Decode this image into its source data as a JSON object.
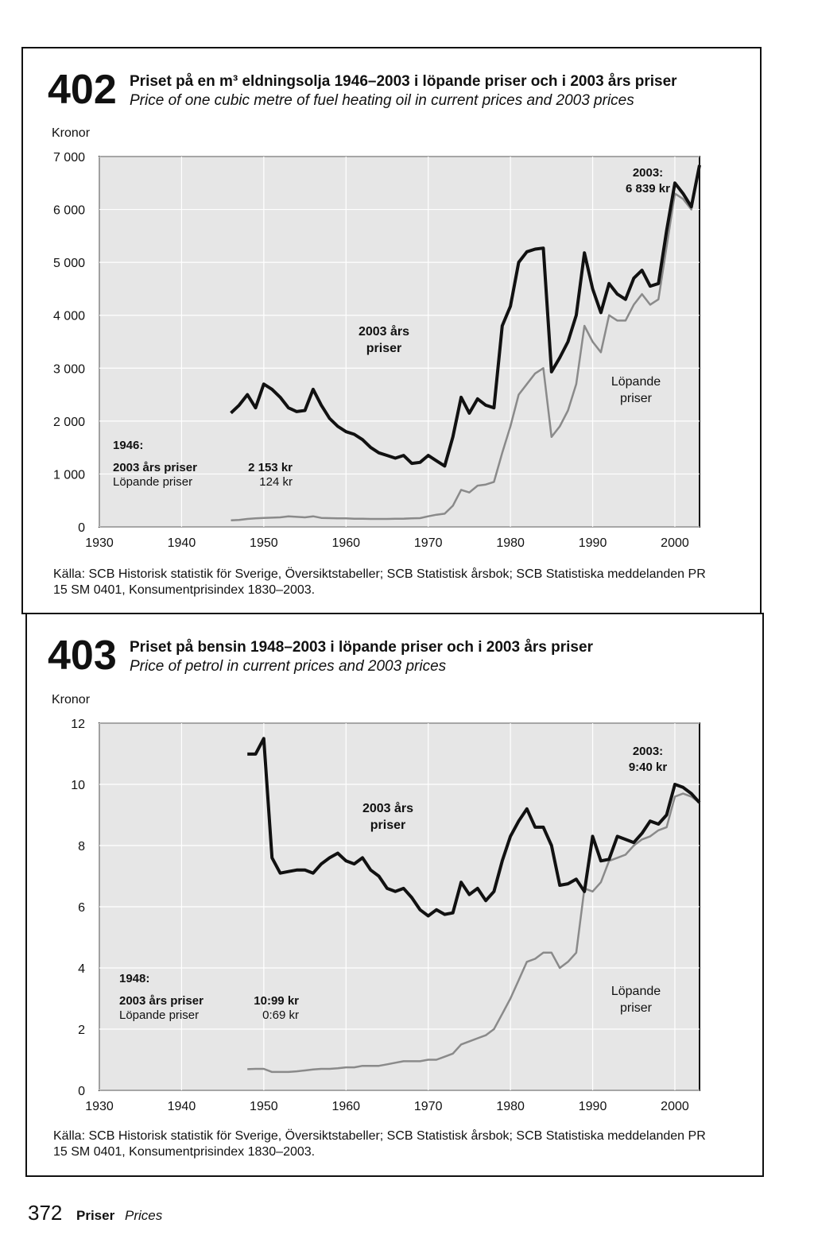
{
  "chart_data": [
    {
      "type": "line",
      "figure_number": "402",
      "title": "Priset på en m³ eldningsolja 1946–2003 i löpande priser och i 2003 års priser",
      "subtitle": "Price of one cubic metre of fuel heating oil in current prices and 2003 prices",
      "y_label": "Kronor",
      "x": [
        1946,
        1947,
        1948,
        1949,
        1950,
        1951,
        1952,
        1953,
        1954,
        1955,
        1956,
        1957,
        1958,
        1959,
        1960,
        1961,
        1962,
        1963,
        1964,
        1965,
        1966,
        1967,
        1968,
        1969,
        1970,
        1971,
        1972,
        1973,
        1974,
        1975,
        1976,
        1977,
        1978,
        1979,
        1980,
        1981,
        1982,
        1983,
        1984,
        1985,
        1986,
        1987,
        1988,
        1989,
        1990,
        1991,
        1992,
        1993,
        1994,
        1995,
        1996,
        1997,
        1998,
        1999,
        2000,
        2001,
        2002,
        2003
      ],
      "series": [
        {
          "name": "2003 års priser",
          "color": "#111111",
          "values": [
            2153,
            2300,
            2500,
            2250,
            2700,
            2600,
            2450,
            2250,
            2180,
            2200,
            2600,
            2300,
            2050,
            1900,
            1800,
            1750,
            1650,
            1500,
            1400,
            1350,
            1300,
            1350,
            1200,
            1220,
            1350,
            1250,
            1150,
            1700,
            2450,
            2150,
            2420,
            2300,
            2250,
            3800,
            4170,
            5000,
            5200,
            5250,
            5270,
            2930,
            3200,
            3500,
            4000,
            5180,
            4500,
            4050,
            4600,
            4400,
            4300,
            4700,
            4850,
            4550,
            4600,
            5600,
            6500,
            6300,
            6050,
            6839
          ]
        },
        {
          "name": "Löpande priser",
          "color": "#8a8a8a",
          "values": [
            124,
            130,
            150,
            160,
            170,
            175,
            180,
            200,
            190,
            180,
            200,
            170,
            165,
            160,
            160,
            155,
            155,
            150,
            150,
            150,
            155,
            155,
            160,
            165,
            200,
            230,
            250,
            400,
            700,
            650,
            780,
            800,
            850,
            1400,
            1900,
            2500,
            2700,
            2900,
            3000,
            1700,
            1900,
            2200,
            2700,
            3800,
            3500,
            3300,
            4000,
            3900,
            3900,
            4200,
            4400,
            4200,
            4300,
            5300,
            6300,
            6200,
            6000,
            6839
          ]
        }
      ],
      "end_label": [
        "2003:",
        "6 839 kr"
      ],
      "start_label": {
        "year": "1946:",
        "rows": [
          [
            "2003 års priser",
            "2 153 kr"
          ],
          [
            "Löpande priser",
            "124 kr"
          ]
        ]
      },
      "xlim": [
        1930,
        2003
      ],
      "xticks": [
        1930,
        1940,
        1950,
        1960,
        1970,
        1980,
        1990,
        2000
      ],
      "ylim": [
        0,
        7000
      ],
      "yticks": [
        0,
        {
          "value": 1000,
          "label": "1 000"
        },
        {
          "value": 2000,
          "label": "2 000"
        },
        {
          "value": 3000,
          "label": "3 000"
        },
        {
          "value": 4000,
          "label": "4 000"
        },
        {
          "value": 5000,
          "label": "5 000"
        },
        {
          "value": 6000,
          "label": "6 000"
        },
        {
          "value": 7000,
          "label": "7 000"
        }
      ],
      "grid": true,
      "source": "Källa: SCB Historisk statistik för Sverige, Översiktstabeller; SCB Statistisk årsbok; SCB Statistiska meddelanden PR 15 SM 0401, Konsumentprisindex 1830–2003."
    },
    {
      "type": "line",
      "figure_number": "403",
      "title": "Priset på bensin 1948–2003 i löpande priser och i 2003 års priser",
      "subtitle": "Price of petrol in current prices and 2003 prices",
      "y_label": "Kronor",
      "x": [
        1948,
        1949,
        1950,
        1951,
        1952,
        1953,
        1954,
        1955,
        1956,
        1957,
        1958,
        1959,
        1960,
        1961,
        1962,
        1963,
        1964,
        1965,
        1966,
        1967,
        1968,
        1969,
        1970,
        1971,
        1972,
        1973,
        1974,
        1975,
        1976,
        1977,
        1978,
        1979,
        1980,
        1981,
        1982,
        1983,
        1984,
        1985,
        1986,
        1987,
        1988,
        1989,
        1990,
        1991,
        1992,
        1993,
        1994,
        1995,
        1996,
        1997,
        1998,
        1999,
        2000,
        2001,
        2002,
        2003
      ],
      "series": [
        {
          "name": "2003 års priser",
          "color": "#111111",
          "values": [
            10.99,
            10.99,
            11.5,
            7.6,
            7.1,
            7.15,
            7.2,
            7.2,
            7.1,
            7.4,
            7.6,
            7.75,
            7.5,
            7.4,
            7.6,
            7.2,
            7.0,
            6.6,
            6.5,
            6.6,
            6.3,
            5.9,
            5.7,
            5.9,
            5.75,
            5.8,
            6.8,
            6.4,
            6.6,
            6.2,
            6.5,
            7.5,
            8.3,
            8.8,
            9.2,
            8.6,
            8.6,
            8.0,
            6.7,
            6.75,
            6.9,
            6.5,
            8.3,
            7.5,
            7.55,
            8.3,
            8.2,
            8.1,
            8.4,
            8.8,
            8.7,
            9.0,
            10.0,
            9.9,
            9.7,
            9.4
          ]
        },
        {
          "name": "Löpande priser",
          "color": "#8a8a8a",
          "values": [
            0.69,
            0.7,
            0.7,
            0.6,
            0.6,
            0.6,
            0.62,
            0.65,
            0.68,
            0.7,
            0.7,
            0.72,
            0.75,
            0.75,
            0.8,
            0.8,
            0.8,
            0.85,
            0.9,
            0.95,
            0.95,
            0.95,
            1.0,
            1.0,
            1.1,
            1.2,
            1.5,
            1.6,
            1.7,
            1.8,
            2.0,
            2.5,
            3.0,
            3.6,
            4.2,
            4.3,
            4.5,
            4.5,
            4.0,
            4.2,
            4.5,
            6.6,
            6.5,
            6.8,
            7.5,
            7.6,
            7.7,
            8.0,
            8.2,
            8.3,
            8.5,
            8.6,
            9.6,
            9.7,
            9.6,
            9.4
          ]
        }
      ],
      "end_label": [
        "2003:",
        "9:40 kr"
      ],
      "start_label": {
        "year": "1948:",
        "rows": [
          [
            "2003 års priser",
            "10:99 kr"
          ],
          [
            "Löpande priser",
            "0:69 kr"
          ]
        ]
      },
      "xlim": [
        1930,
        2003
      ],
      "xticks": [
        1930,
        1940,
        1950,
        1960,
        1970,
        1980,
        1990,
        2000
      ],
      "ylim": [
        0,
        12
      ],
      "yticks": [
        0,
        2,
        4,
        6,
        8,
        10,
        12
      ],
      "grid": true,
      "source": "Källa: SCB Historisk statistik för Sverige, Översiktstabeller; SCB Statistisk årsbok; SCB Statistiska meddelanden PR 15 SM 0401, Konsumentprisindex 1830–2003."
    }
  ],
  "footer": {
    "page_number": "372",
    "section": "Priser",
    "section_en": "Prices"
  }
}
